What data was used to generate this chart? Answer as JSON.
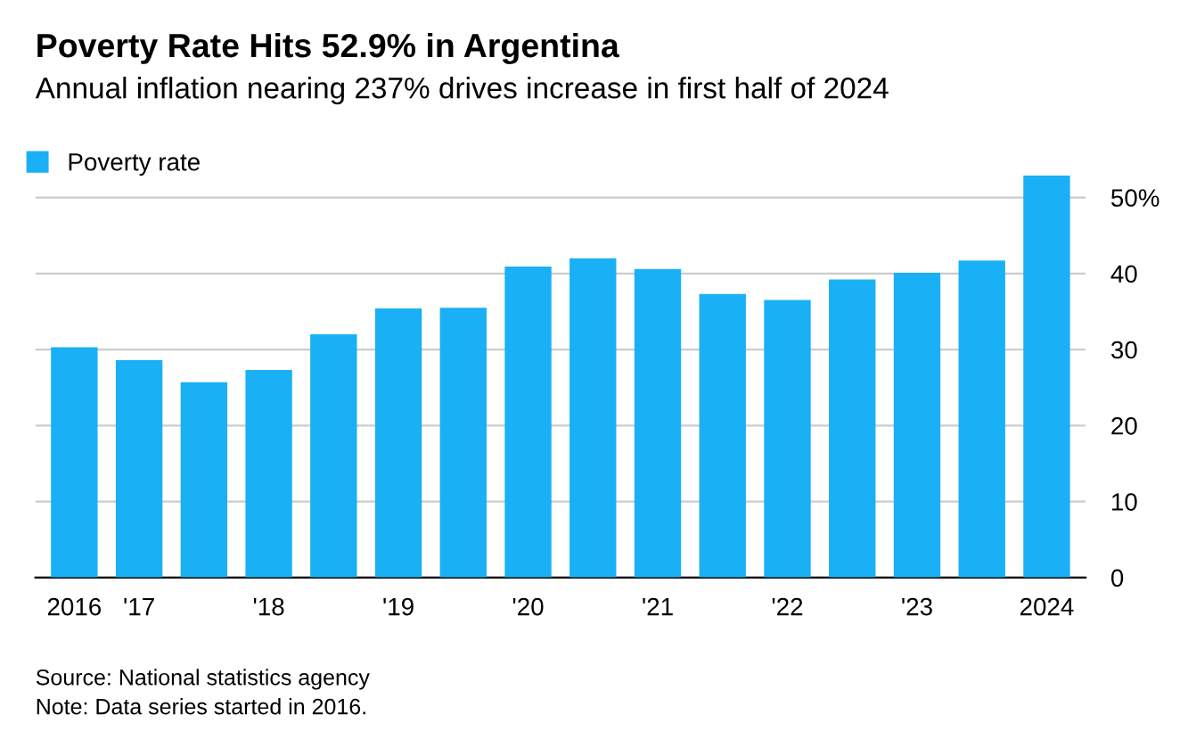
{
  "chart_data": {
    "type": "bar",
    "title": "Poverty Rate Hits 52.9% in Argentina",
    "subtitle": "Annual inflation nearing 237% drives increase in first half of 2024",
    "categories": [
      "2016",
      "'17",
      null,
      "'18",
      null,
      "'19",
      null,
      "'20",
      null,
      "'21",
      null,
      "'22",
      null,
      "'23",
      null,
      "2024"
    ],
    "series": [
      {
        "name": "Poverty rate",
        "color": "#1ab0f5",
        "values": [
          30.3,
          28.6,
          25.7,
          27.3,
          32.0,
          35.4,
          35.5,
          40.9,
          42.0,
          40.6,
          37.3,
          36.5,
          39.2,
          40.1,
          41.7,
          52.9
        ]
      }
    ],
    "ylim": [
      0,
      52.9
    ],
    "yticks": [
      0,
      10,
      20,
      30,
      40,
      {
        "value": 50,
        "label": "50%"
      }
    ],
    "grid": "y",
    "legend": "top left",
    "annotations": [
      "Source: National statistics agency",
      "Note: Data series started in 2016."
    ]
  }
}
